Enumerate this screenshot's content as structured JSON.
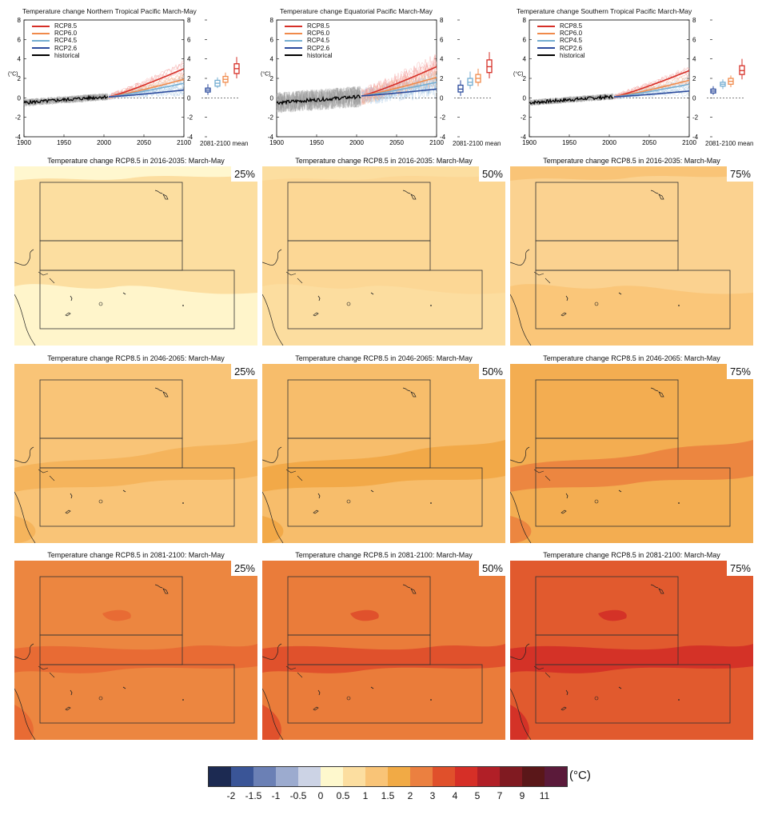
{
  "ts_panels": [
    {
      "title": "Temperature change Northern Tropical Pacific March-May",
      "amp": 0.35
    },
    {
      "title": "Temperature change Equatorial Pacific March-May",
      "amp": 1.0
    },
    {
      "title": "Temperature change Southern Tropical Pacific March-May",
      "amp": 0.3
    }
  ],
  "ts_axis": {
    "ylabel": "(°C)",
    "ylim": [
      -4,
      8
    ],
    "yticks": [
      "8",
      "6",
      "4",
      "2",
      "0",
      "-2",
      "-4"
    ],
    "xticks": [
      "1900",
      "1950",
      "2000",
      "2050",
      "2100"
    ],
    "mean_label": "2081-2100 mean"
  },
  "legend": [
    {
      "name": "RCP8.5",
      "color": "#d62f27"
    },
    {
      "name": "RCP6.0",
      "color": "#f08a4b"
    },
    {
      "name": "RCP4.5",
      "color": "#74add1"
    },
    {
      "name": "RCP2.6",
      "color": "#2b4a9c"
    },
    {
      "name": "historical",
      "color": "#000000"
    }
  ],
  "chart_data": [
    {
      "type": "line",
      "title": "Temperature change Northern Tropical Pacific March-May",
      "ylabel": "(°C)",
      "ylim": [
        -4,
        8
      ],
      "xlim": [
        1900,
        2100
      ],
      "series": [
        {
          "name": "historical",
          "x": [
            1900,
            1950,
            2005
          ],
          "y": [
            -0.5,
            -0.2,
            0.1
          ]
        },
        {
          "name": "RCP8.5",
          "x": [
            2006,
            2100
          ],
          "y": [
            0.1,
            3.0
          ]
        },
        {
          "name": "RCP6.0",
          "x": [
            2006,
            2100
          ],
          "y": [
            0.1,
            1.9
          ]
        },
        {
          "name": "RCP4.5",
          "x": [
            2006,
            2100
          ],
          "y": [
            0.1,
            1.5
          ]
        },
        {
          "name": "RCP2.6",
          "x": [
            2006,
            2100
          ],
          "y": [
            0.1,
            0.8
          ]
        }
      ],
      "boxplots_2081_2100_mean": {
        "RCP2.6": {
          "min": 0.3,
          "q1": 0.6,
          "median": 0.8,
          "q3": 1.0,
          "max": 1.4
        },
        "RCP4.5": {
          "min": 1.0,
          "q1": 1.2,
          "median": 1.5,
          "q3": 1.8,
          "max": 2.1
        },
        "RCP6.0": {
          "min": 1.2,
          "q1": 1.6,
          "median": 1.9,
          "q3": 2.2,
          "max": 2.6
        },
        "RCP8.5": {
          "min": 2.0,
          "q1": 2.5,
          "median": 3.0,
          "q3": 3.5,
          "max": 4.2
        }
      }
    },
    {
      "type": "line",
      "title": "Temperature change Equatorial Pacific March-May",
      "ylabel": "(°C)",
      "ylim": [
        -4,
        8
      ],
      "xlim": [
        1900,
        2100
      ],
      "series": [
        {
          "name": "historical",
          "x": [
            1900,
            1950,
            2005
          ],
          "y": [
            -0.4,
            -0.2,
            0.2
          ]
        },
        {
          "name": "RCP8.5",
          "x": [
            2006,
            2100
          ],
          "y": [
            0.2,
            3.2
          ]
        },
        {
          "name": "RCP6.0",
          "x": [
            2006,
            2100
          ],
          "y": [
            0.2,
            2.1
          ]
        },
        {
          "name": "RCP4.5",
          "x": [
            2006,
            2100
          ],
          "y": [
            0.2,
            1.6
          ]
        },
        {
          "name": "RCP2.6",
          "x": [
            2006,
            2100
          ],
          "y": [
            0.2,
            0.9
          ]
        }
      ],
      "boxplots_2081_2100_mean": {
        "RCP2.6": {
          "min": 0.2,
          "q1": 0.6,
          "median": 0.9,
          "q3": 1.3,
          "max": 1.8
        },
        "RCP4.5": {
          "min": 0.9,
          "q1": 1.3,
          "median": 1.6,
          "q3": 2.0,
          "max": 2.7
        },
        "RCP6.0": {
          "min": 1.2,
          "q1": 1.6,
          "median": 2.0,
          "q3": 2.4,
          "max": 3.0
        },
        "RCP8.5": {
          "min": 2.0,
          "q1": 2.6,
          "median": 3.2,
          "q3": 3.9,
          "max": 4.7
        }
      }
    },
    {
      "type": "line",
      "title": "Temperature change Southern Tropical Pacific March-May",
      "ylabel": "(°C)",
      "ylim": [
        -4,
        8
      ],
      "xlim": [
        1900,
        2100
      ],
      "series": [
        {
          "name": "historical",
          "x": [
            1900,
            1950,
            2005
          ],
          "y": [
            -0.5,
            -0.3,
            0.1
          ]
        },
        {
          "name": "RCP8.5",
          "x": [
            2006,
            2100
          ],
          "y": [
            0.1,
            2.8
          ]
        },
        {
          "name": "RCP6.0",
          "x": [
            2006,
            2100
          ],
          "y": [
            0.1,
            1.8
          ]
        },
        {
          "name": "RCP4.5",
          "x": [
            2006,
            2100
          ],
          "y": [
            0.1,
            1.4
          ]
        },
        {
          "name": "RCP2.6",
          "x": [
            2006,
            2100
          ],
          "y": [
            0.1,
            0.7
          ]
        }
      ],
      "boxplots_2081_2100_mean": {
        "RCP2.6": {
          "min": 0.3,
          "q1": 0.5,
          "median": 0.7,
          "q3": 0.9,
          "max": 1.2
        },
        "RCP4.5": {
          "min": 0.9,
          "q1": 1.2,
          "median": 1.4,
          "q3": 1.6,
          "max": 1.9
        },
        "RCP6.0": {
          "min": 1.1,
          "q1": 1.4,
          "median": 1.7,
          "q3": 2.0,
          "max": 2.3
        },
        "RCP8.5": {
          "min": 1.9,
          "q1": 2.4,
          "median": 2.8,
          "q3": 3.3,
          "max": 4.0
        }
      }
    }
  ],
  "maps": [
    {
      "title": "Temperature change RCP8.5 in 2016-2035: March-May",
      "pct": "25%",
      "bg": "#fcdea0",
      "patch": "#fff7cf"
    },
    {
      "title": "Temperature change RCP8.5 in 2016-2035: March-May",
      "pct": "50%",
      "bg": "#fcd795",
      "patch": "#fcdea0"
    },
    {
      "title": "Temperature change RCP8.5 in 2016-2035: March-May",
      "pct": "75%",
      "bg": "#fbd290",
      "patch": "#f9c477"
    },
    {
      "title": "Temperature change RCP8.5 in 2046-2065: March-May",
      "pct": "25%",
      "bg": "#f9c477",
      "patch": "#f5b45c"
    },
    {
      "title": "Temperature change RCP8.5 in 2046-2065: March-May",
      "pct": "50%",
      "bg": "#f7bd6b",
      "patch": "#f2a948"
    },
    {
      "title": "Temperature change RCP8.5 in 2046-2065: March-May",
      "pct": "75%",
      "bg": "#f3ad51",
      "patch": "#ec8640"
    },
    {
      "title": "Temperature change RCP8.5 in 2081-2100: March-May",
      "pct": "25%",
      "bg": "#ec8640",
      "patch": "#e86b34"
    },
    {
      "title": "Temperature change RCP8.5 in 2081-2100: March-May",
      "pct": "50%",
      "bg": "#ea7c3a",
      "patch": "#e0512c"
    },
    {
      "title": "Temperature change RCP8.5 in 2081-2100: March-May",
      "pct": "75%",
      "bg": "#e15a2e",
      "patch": "#d43227"
    }
  ],
  "colorbar": {
    "unit": "(°C)",
    "colors": [
      "#1c2a52",
      "#3a5597",
      "#6b80b5",
      "#9cabcf",
      "#ccd3e5",
      "#fef8cd",
      "#fcdea0",
      "#f9c477",
      "#f1aa45",
      "#eb8040",
      "#e0502b",
      "#d62f27",
      "#b11f27",
      "#801a21",
      "#5a1719",
      "#5b1a3a"
    ],
    "labels": [
      "-2",
      "-1.5",
      "-1",
      "-0.5",
      "0",
      "0.5",
      "1",
      "1.5",
      "2",
      "3",
      "4",
      "5",
      "7",
      "9",
      "11"
    ]
  }
}
